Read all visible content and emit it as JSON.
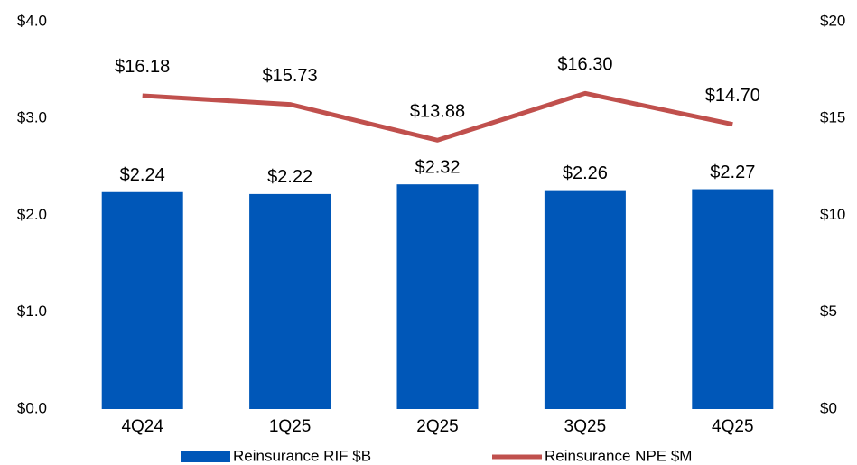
{
  "chart_data": {
    "type": "bar",
    "categories": [
      "4Q24",
      "1Q25",
      "2Q25",
      "3Q25",
      "4Q25"
    ],
    "series": [
      {
        "name": "Reinsurance RIF $B",
        "type": "bar",
        "color": "#0057b8",
        "values": [
          2.24,
          2.22,
          2.32,
          2.26,
          2.27
        ],
        "value_labels": [
          "$2.24",
          "$2.22",
          "$2.32",
          "$2.26",
          "$2.27"
        ]
      },
      {
        "name": "Reinsurance NPE $M",
        "type": "line",
        "axis": "y2",
        "color": "#c0504d",
        "values": [
          16.18,
          15.73,
          13.88,
          16.3,
          14.7
        ],
        "value_labels": [
          "$16.18",
          "$15.73",
          "$13.88",
          "$16.30",
          "$14.70"
        ]
      }
    ],
    "ylim": [
      0,
      4
    ],
    "yticks": [
      {
        "value": 0,
        "label": "$0.0"
      },
      {
        "value": 1,
        "label": "$1.0"
      },
      {
        "value": 2,
        "label": "$2.0"
      },
      {
        "value": 3,
        "label": "$3.0"
      },
      {
        "value": 4,
        "label": "$4.0"
      }
    ],
    "y2lim": [
      0,
      20
    ],
    "y2ticks": [
      {
        "value": 0,
        "label": "$0"
      },
      {
        "value": 5,
        "label": "$5"
      },
      {
        "value": 10,
        "label": "$10"
      },
      {
        "value": 15,
        "label": "$15"
      },
      {
        "value": 20,
        "label": "$20"
      }
    ],
    "grid": false,
    "legend": "bottom"
  }
}
